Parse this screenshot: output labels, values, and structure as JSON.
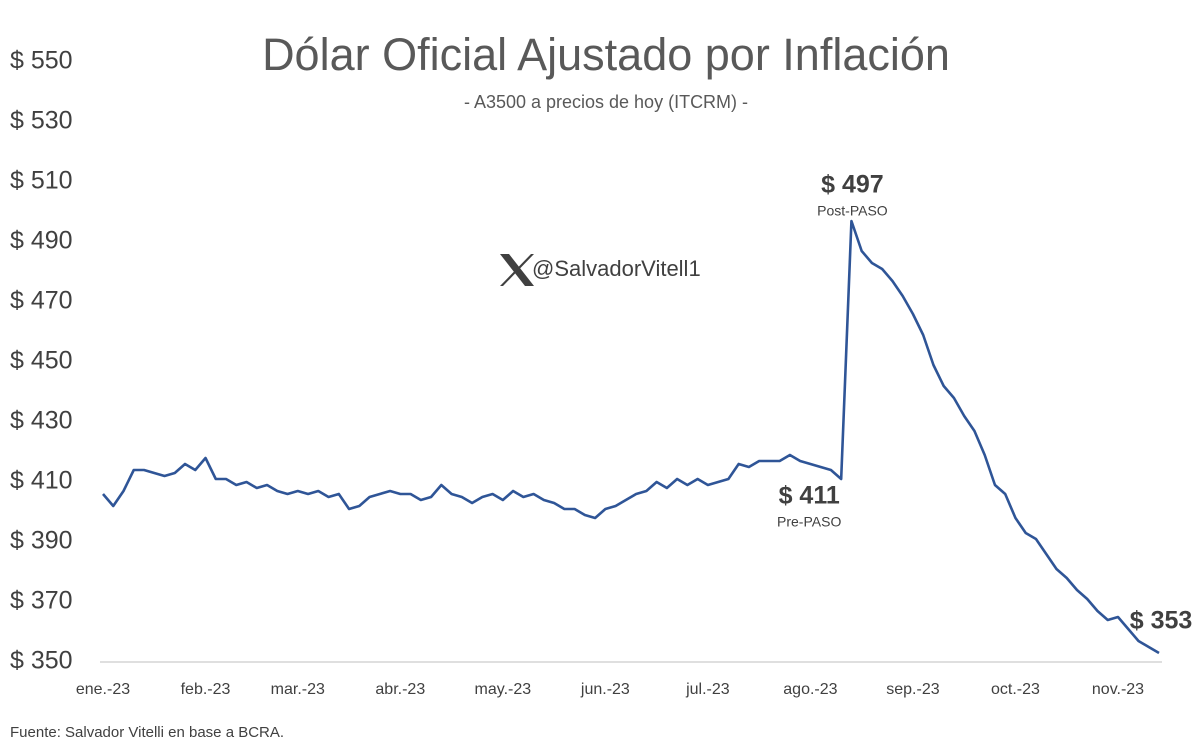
{
  "chart_data": {
    "type": "line",
    "title": "Dólar Oficial Ajustado por Inflación",
    "subtitle": "- A3500 a precios de hoy (ITCRM) -",
    "watermark": "@SalvadorVitell1",
    "source": "Fuente: Salvador Vitelli en base a BCRA.",
    "ylim": [
      350,
      550
    ],
    "yticks": [
      {
        "value": 350,
        "label": "$ 350"
      },
      {
        "value": 370,
        "label": "$ 370"
      },
      {
        "value": 390,
        "label": "$ 390"
      },
      {
        "value": 410,
        "label": "$ 410"
      },
      {
        "value": 430,
        "label": "$ 430"
      },
      {
        "value": 450,
        "label": "$ 450"
      },
      {
        "value": 470,
        "label": "$ 470"
      },
      {
        "value": 490,
        "label": "$ 490"
      },
      {
        "value": 510,
        "label": "$ 510"
      },
      {
        "value": 530,
        "label": "$ 530"
      },
      {
        "value": 550,
        "label": "$ 550"
      }
    ],
    "grid": false,
    "categories": [
      "ene.-23",
      null,
      null,
      null,
      null,
      null,
      null,
      null,
      null,
      null,
      "feb.-23",
      null,
      null,
      null,
      null,
      null,
      null,
      null,
      null,
      "mar.-23",
      null,
      null,
      null,
      null,
      null,
      null,
      null,
      null,
      null,
      "abr.-23",
      null,
      null,
      null,
      null,
      null,
      null,
      null,
      null,
      null,
      "may.-23",
      null,
      null,
      null,
      null,
      null,
      null,
      null,
      null,
      null,
      "jun.-23",
      null,
      null,
      null,
      null,
      null,
      null,
      null,
      null,
      null,
      "jul.-23",
      null,
      null,
      null,
      null,
      null,
      null,
      null,
      null,
      null,
      "ago.-23",
      null,
      null,
      null,
      null,
      null,
      null,
      null,
      null,
      null,
      "sep.-23",
      null,
      null,
      null,
      null,
      null,
      null,
      null,
      null,
      null,
      "oct.-23",
      null,
      null,
      null,
      null,
      null,
      null,
      null,
      null,
      null,
      "nov.-23",
      null,
      null,
      null,
      null
    ],
    "series": [
      {
        "name": "A3500 a precios de hoy",
        "color": "#2f5597",
        "values": [
          406,
          402,
          407,
          414,
          414,
          413,
          412,
          413,
          416,
          414,
          418,
          411,
          411,
          409,
          410,
          408,
          409,
          407,
          406,
          407,
          406,
          407,
          405,
          406,
          401,
          402,
          405,
          406,
          407,
          406,
          406,
          404,
          405,
          409,
          406,
          405,
          403,
          405,
          406,
          404,
          407,
          405,
          406,
          404,
          403,
          401,
          401,
          399,
          398,
          401,
          402,
          404,
          406,
          407,
          410,
          408,
          411,
          409,
          411,
          409,
          410,
          411,
          416,
          415,
          417,
          417,
          417,
          419,
          417,
          416,
          415,
          414,
          411,
          497,
          487,
          483,
          481,
          477,
          472,
          466,
          459,
          449,
          442,
          438,
          432,
          427,
          419,
          409,
          406,
          398,
          393,
          391,
          386,
          381,
          378,
          374,
          371,
          367,
          364,
          365,
          361,
          357,
          355,
          353
        ],
        "value_labels": [
          null,
          null,
          null,
          null,
          null,
          null,
          null,
          null,
          null,
          null,
          null,
          null,
          null,
          null,
          null,
          null,
          null,
          null,
          null,
          null,
          null,
          null,
          null,
          null,
          null,
          null,
          null,
          null,
          null,
          null,
          null,
          null,
          null,
          null,
          null,
          null,
          null,
          null,
          null,
          null,
          null,
          null,
          null,
          null,
          null,
          null,
          null,
          null,
          null,
          null,
          null,
          null,
          null,
          null,
          null,
          null,
          null,
          null,
          null,
          null,
          null,
          null,
          null,
          null,
          null,
          null,
          null,
          null,
          null,
          null,
          null,
          null,
          "$ 411",
          "$ 497",
          null,
          null,
          null,
          null,
          null,
          null,
          null,
          null,
          null,
          null,
          null,
          null,
          null,
          null,
          null,
          null,
          null,
          null,
          null,
          null,
          null,
          null,
          null,
          null,
          null,
          null,
          null,
          null,
          null,
          "$ 353"
        ],
        "value_notes": [
          null,
          null,
          null,
          null,
          null,
          null,
          null,
          null,
          null,
          null,
          null,
          null,
          null,
          null,
          null,
          null,
          null,
          null,
          null,
          null,
          null,
          null,
          null,
          null,
          null,
          null,
          null,
          null,
          null,
          null,
          null,
          null,
          null,
          null,
          null,
          null,
          null,
          null,
          null,
          null,
          null,
          null,
          null,
          null,
          null,
          null,
          null,
          null,
          null,
          null,
          null,
          null,
          null,
          null,
          null,
          null,
          null,
          null,
          null,
          null,
          null,
          null,
          null,
          null,
          null,
          null,
          null,
          null,
          null,
          null,
          null,
          null,
          "Pre-PASO",
          "Post-PASO",
          null,
          null,
          null,
          null,
          null,
          null,
          null,
          null,
          null,
          null,
          null,
          null,
          null,
          null,
          null,
          null,
          null,
          null,
          null,
          null,
          null,
          null,
          null,
          null,
          null,
          null,
          null,
          null,
          null,
          null
        ]
      }
    ]
  }
}
